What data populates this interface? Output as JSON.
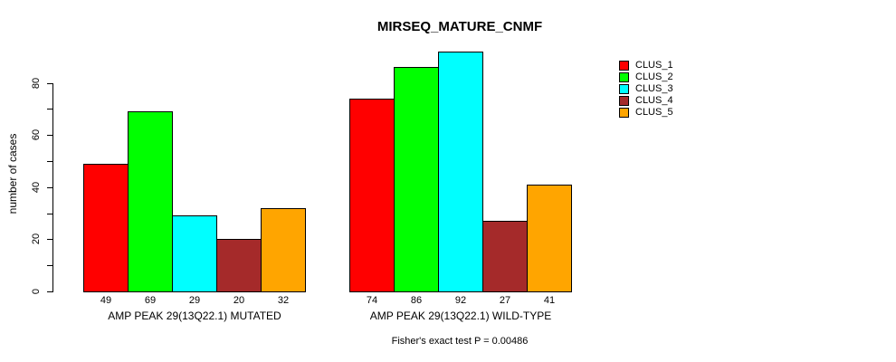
{
  "chart_data": {
    "type": "bar",
    "title": "MIRSEQ_MATURE_CNMF",
    "ylabel": "number of cases",
    "xlabel": "",
    "ylim": [
      0,
      80
    ],
    "y_major_ticks": [
      0,
      20,
      40,
      60,
      80
    ],
    "y_minor_tick_step": 10,
    "grid": false,
    "legend_position": "top-right",
    "bar_value_labels_shown": true,
    "categories": [
      "AMP PEAK 29(13Q22.1) MUTATED",
      "AMP PEAK 29(13Q22.1) WILD-TYPE"
    ],
    "series": [
      {
        "name": "CLUS_1",
        "color": "#ff0000",
        "values": [
          49,
          74
        ]
      },
      {
        "name": "CLUS_2",
        "color": "#00ff00",
        "values": [
          69,
          86
        ]
      },
      {
        "name": "CLUS_3",
        "color": "#00ffff",
        "values": [
          29,
          92
        ]
      },
      {
        "name": "CLUS_4",
        "color": "#a52a2a",
        "values": [
          20,
          27
        ]
      },
      {
        "name": "CLUS_5",
        "color": "#ffa500",
        "values": [
          32,
          41
        ]
      }
    ],
    "annotation": "Fisher's exact test P = 0.00486"
  }
}
